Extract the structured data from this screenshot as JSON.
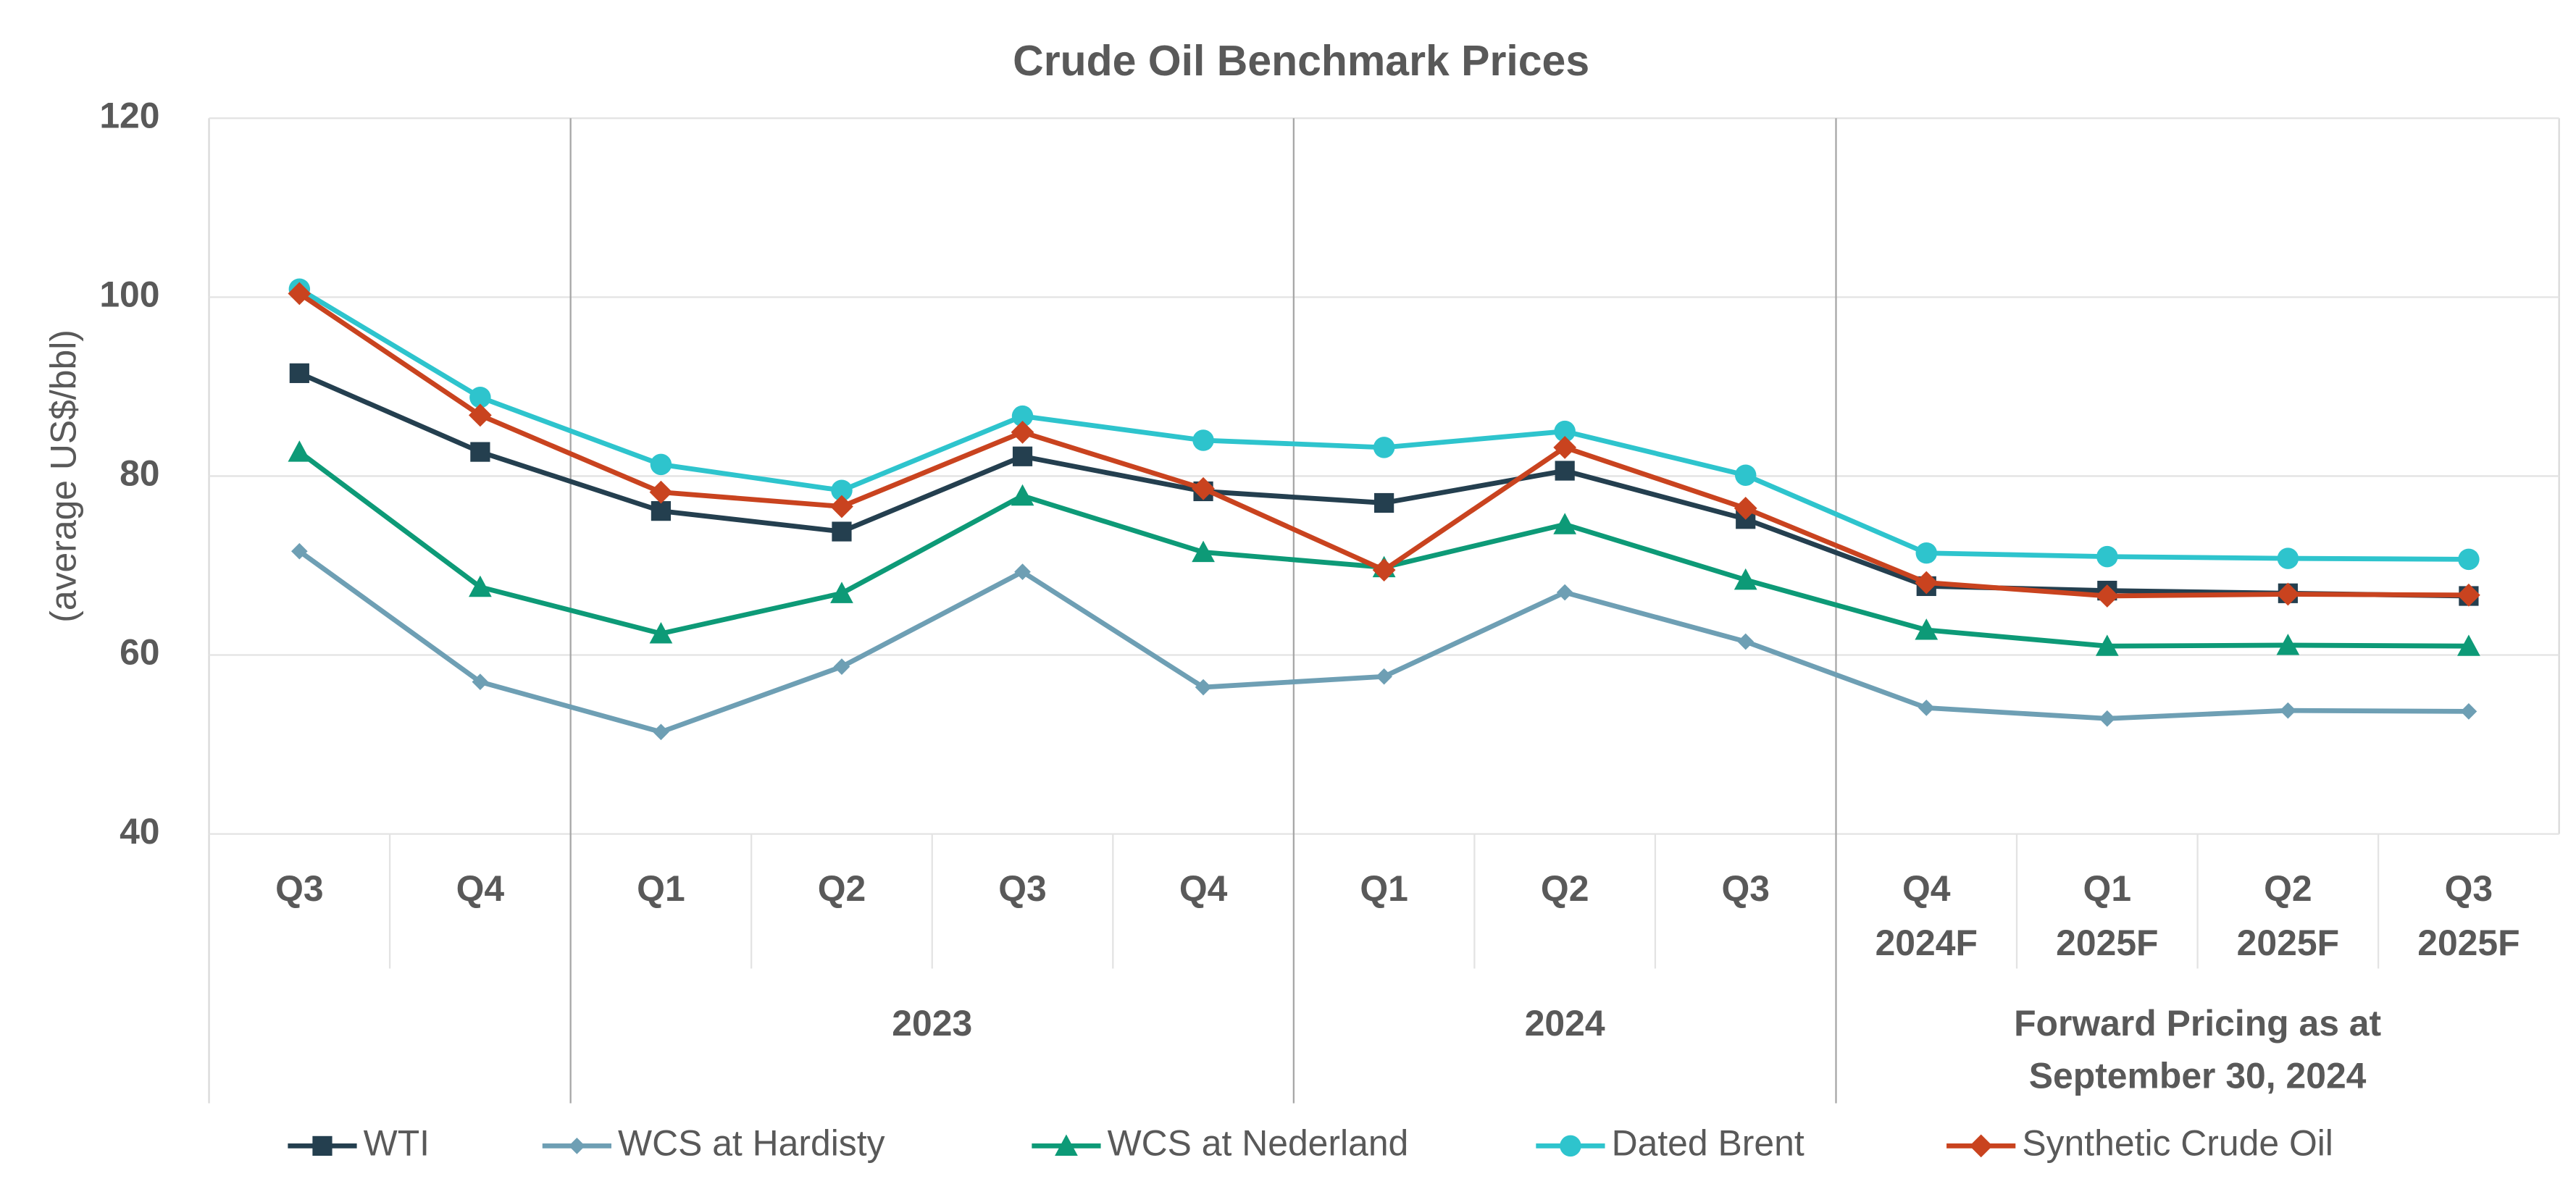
{
  "chart_data": {
    "type": "line",
    "title": "Crude Oil Benchmark Prices",
    "y_label": "(average US$/bbl)",
    "categories": [
      [
        "Q3"
      ],
      [
        "Q4"
      ],
      [
        "Q1"
      ],
      [
        "Q2"
      ],
      [
        "Q3"
      ],
      [
        "Q4"
      ],
      [
        "Q1"
      ],
      [
        "Q2"
      ],
      [
        "Q3"
      ],
      [
        "Q4",
        "2024F"
      ],
      [
        "Q1",
        "2025F"
      ],
      [
        "Q2",
        "2025F"
      ],
      [
        "Q3",
        "2025F"
      ]
    ],
    "groups": [
      {
        "start": 2,
        "end": 5,
        "label": [
          "2023"
        ]
      },
      {
        "start": 6,
        "end": 8,
        "label": [
          "2024"
        ]
      },
      {
        "start": 9,
        "end": 12,
        "label": [
          "Forward Pricing as at",
          "September 30, 2024"
        ]
      }
    ],
    "ylim": [
      40,
      120
    ],
    "yticks": [
      40,
      60,
      80,
      100,
      120
    ],
    "grid": true,
    "series": [
      {
        "name": "WTI",
        "color": "#243f4f",
        "marker": "square",
        "values": [
          91.5,
          82.7,
          76.1,
          73.8,
          82.2,
          78.3,
          77.0,
          80.6,
          75.2,
          67.7,
          67.2,
          66.9,
          66.6
        ]
      },
      {
        "name": "WCS at Hardisty",
        "color": "#6e9fb4",
        "marker": "small-diamond",
        "values": [
          71.6,
          57.0,
          51.4,
          58.7,
          69.3,
          56.4,
          57.6,
          67.0,
          61.5,
          54.1,
          52.9,
          53.8,
          53.7
        ]
      },
      {
        "name": "WCS at Nederland",
        "color": "#0d9a77",
        "marker": "triangle",
        "values": [
          82.7,
          67.6,
          62.4,
          66.9,
          77.8,
          71.5,
          69.8,
          74.6,
          68.4,
          62.8,
          61.0,
          61.1,
          61.0
        ]
      },
      {
        "name": "Dated Brent",
        "color": "#2ec4cd",
        "marker": "circle",
        "values": [
          100.9,
          88.8,
          81.3,
          78.4,
          86.7,
          84.0,
          83.2,
          85.0,
          80.1,
          71.4,
          71.0,
          70.8,
          70.7
        ]
      },
      {
        "name": "Synthetic Crude Oil",
        "color": "#c9431f",
        "marker": "diamond",
        "values": [
          100.4,
          86.8,
          78.2,
          76.6,
          84.9,
          78.6,
          69.5,
          83.2,
          76.4,
          68.1,
          66.6,
          66.8,
          66.7
        ]
      }
    ]
  }
}
